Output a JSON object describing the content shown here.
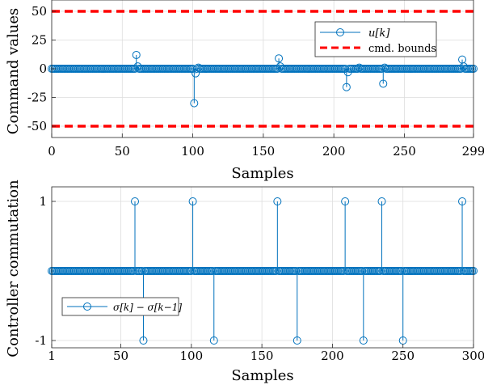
{
  "colors": {
    "stem": "#0072BD",
    "bounds": "#FF0000",
    "grid": "#DDDDDD",
    "axis": "#262626"
  },
  "chart_data": [
    {
      "type": "stem",
      "ylabel": "Command values",
      "xlabel": "Samples",
      "xlim": [
        0,
        299
      ],
      "ylim": [
        -60,
        55
      ],
      "xticks": [
        0,
        50,
        100,
        150,
        200,
        250,
        299
      ],
      "yticks": [
        50,
        25,
        0,
        -25,
        -50
      ],
      "ytick_labels": [
        "50",
        "25",
        "0",
        "-25",
        "-50"
      ],
      "grid": true,
      "legend_position": "top-right",
      "series": [
        {
          "name": "u[k]",
          "style": "stem",
          "length": 300,
          "baseline": 0,
          "nonzero": [
            {
              "x": 60,
              "y": 12
            },
            {
              "x": 61,
              "y": 2
            },
            {
              "x": 101,
              "y": -30
            },
            {
              "x": 102,
              "y": -4
            },
            {
              "x": 104,
              "y": 1
            },
            {
              "x": 161,
              "y": 9
            },
            {
              "x": 162,
              "y": 2
            },
            {
              "x": 209,
              "y": -16
            },
            {
              "x": 210,
              "y": -3
            },
            {
              "x": 218,
              "y": 1
            },
            {
              "x": 235,
              "y": -13
            },
            {
              "x": 236,
              "y": 1
            },
            {
              "x": 291,
              "y": 8
            },
            {
              "x": 292,
              "y": 2
            }
          ]
        },
        {
          "name": "cmd. bounds",
          "style": "dashed",
          "lines": [
            50,
            -50
          ]
        }
      ]
    },
    {
      "type": "stem",
      "ylabel": "Controller commutation",
      "xlabel": "Samples",
      "xlim": [
        1,
        300
      ],
      "ylim": [
        -1,
        1
      ],
      "xticks": [
        1,
        50,
        100,
        150,
        200,
        250,
        300
      ],
      "yticks": [
        1,
        -1
      ],
      "ytick_labels": [
        "1",
        "-1"
      ],
      "grid": true,
      "legend_position": "bottom-left",
      "series": [
        {
          "name": "σ[k] − σ[k−1]",
          "style": "stem",
          "length": 300,
          "baseline": 0,
          "nonzero": [
            {
              "x": 60,
              "y": 1
            },
            {
              "x": 66,
              "y": -1
            },
            {
              "x": 101,
              "y": 1
            },
            {
              "x": 116,
              "y": -1
            },
            {
              "x": 161,
              "y": 1
            },
            {
              "x": 175,
              "y": -1
            },
            {
              "x": 209,
              "y": 1
            },
            {
              "x": 222,
              "y": -1
            },
            {
              "x": 235,
              "y": 1
            },
            {
              "x": 250,
              "y": -1
            },
            {
              "x": 292,
              "y": 1
            }
          ]
        }
      ]
    }
  ]
}
